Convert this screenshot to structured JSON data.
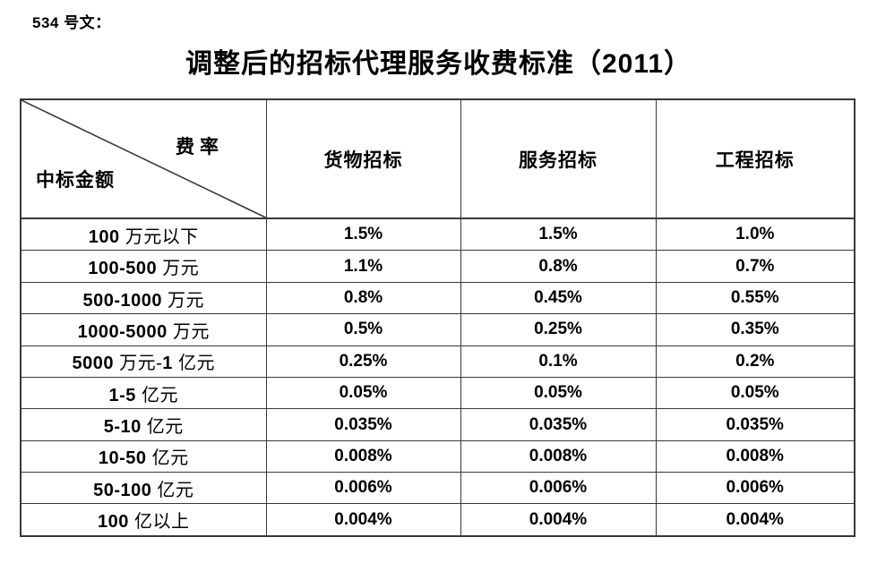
{
  "page": {
    "doc_label": "534 号文：",
    "title": "调整后的招标代理服务收费标准（2011）"
  },
  "table": {
    "corner": {
      "top_right": "费率",
      "bottom_left": "中标金额"
    },
    "columns": [
      "货物招标",
      "服务招标",
      "工程招标"
    ],
    "rows": [
      {
        "amount": "100 万元以下",
        "values": [
          "1.5%",
          "1.5%",
          "1.0%"
        ]
      },
      {
        "amount": "100-500 万元",
        "values": [
          "1.1%",
          "0.8%",
          "0.7%"
        ]
      },
      {
        "amount": "500-1000 万元",
        "values": [
          "0.8%",
          "0.45%",
          "0.55%"
        ]
      },
      {
        "amount": "1000-5000 万元",
        "values": [
          "0.5%",
          "0.25%",
          "0.35%"
        ]
      },
      {
        "amount": "5000 万元-1 亿元",
        "values": [
          "0.25%",
          "0.1%",
          "0.2%"
        ]
      },
      {
        "amount": "1-5 亿元",
        "values": [
          "0.05%",
          "0.05%",
          "0.05%"
        ]
      },
      {
        "amount": "5-10 亿元",
        "values": [
          "0.035%",
          "0.035%",
          "0.035%"
        ]
      },
      {
        "amount": "10-50 亿元",
        "values": [
          "0.008%",
          "0.008%",
          "0.008%"
        ]
      },
      {
        "amount": "50-100 亿元",
        "values": [
          "0.006%",
          "0.006%",
          "0.006%"
        ]
      },
      {
        "amount": "100 亿以上",
        "values": [
          "0.004%",
          "0.004%",
          "0.004%"
        ]
      }
    ],
    "line_color": "#383838"
  }
}
